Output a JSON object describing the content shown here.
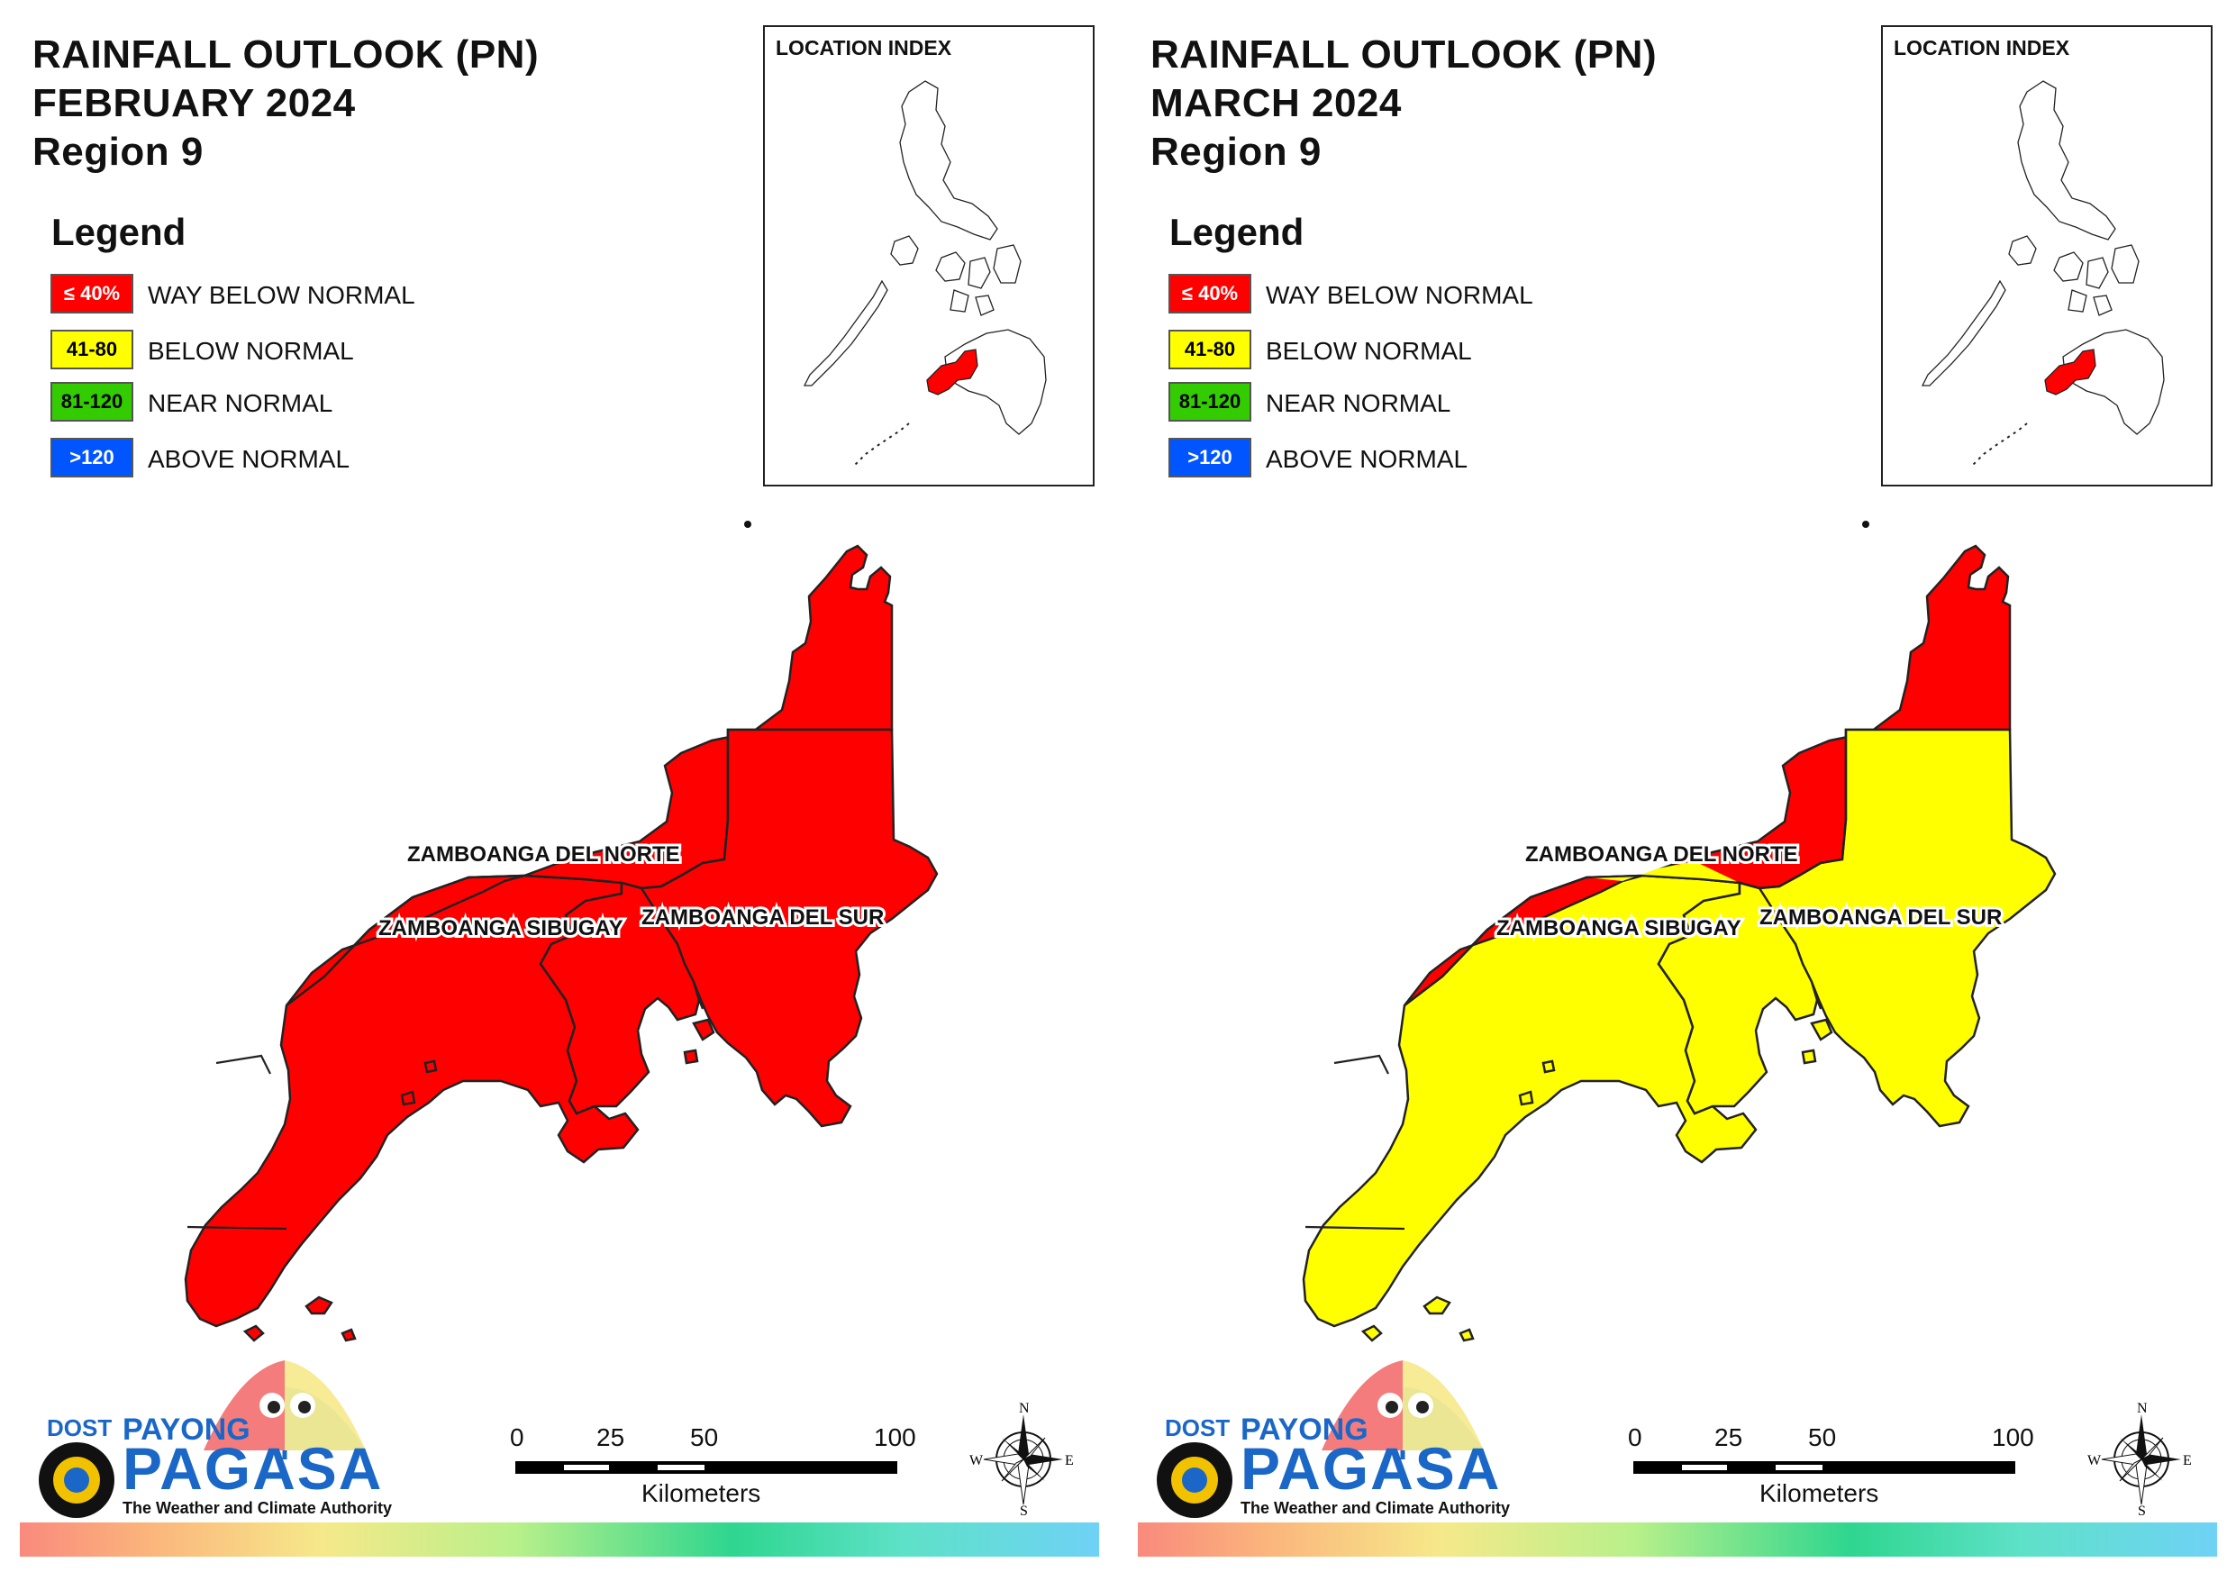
{
  "colors": {
    "way_below": "#ff0000",
    "below": "#ffff00",
    "near": "#33cc00",
    "above": "#0055ff",
    "outline": "#222222"
  },
  "legend": {
    "title": "Legend",
    "items": [
      {
        "key": "way_below",
        "range": "≤ 40%",
        "label": "WAY BELOW NORMAL",
        "swatch_text_color": "#ffffff"
      },
      {
        "key": "below",
        "range": "41-80",
        "label": "BELOW NORMAL",
        "swatch_text_color": "#000000"
      },
      {
        "key": "near",
        "range": "81-120",
        "label": "NEAR NORMAL",
        "swatch_text_color": "#000000"
      },
      {
        "key": "above",
        "range": ">120",
        "label": "ABOVE NORMAL",
        "swatch_text_color": "#ffffff"
      }
    ]
  },
  "location_index_label": "LOCATION INDEX",
  "scalebar": {
    "ticks": [
      "0",
      "25",
      "50",
      "100"
    ],
    "unit": "Kilometers"
  },
  "compass": {
    "n": "N",
    "s": "S",
    "e": "E",
    "w": "W"
  },
  "logo": {
    "dost": "DOST",
    "payong": "PAYONG",
    "pagasa": "PAGASA",
    "tagline": "The Weather and Climate Authority"
  },
  "panels": [
    {
      "title_line1": "RAINFALL OUTLOOK (PN)",
      "title_line2": "FEBRUARY 2024",
      "title_line3": "Region 9",
      "provinces": {
        "zamboanga_del_norte": {
          "label": "ZAMBOANGA DEL NORTE",
          "category": "way_below"
        },
        "zamboanga_sibugay": {
          "label": "ZAMBOANGA SIBUGAY",
          "category": "way_below"
        },
        "zamboanga_del_sur": {
          "label": "ZAMBOANGA DEL SUR",
          "category": "way_below"
        }
      }
    },
    {
      "title_line1": "RAINFALL OUTLOOK (PN)",
      "title_line2": "MARCH 2024",
      "title_line3": "Region 9",
      "provinces": {
        "zamboanga_del_norte": {
          "label": "ZAMBOANGA DEL NORTE",
          "category": "way_below",
          "partial_category": "below"
        },
        "zamboanga_sibugay": {
          "label": "ZAMBOANGA SIBUGAY",
          "category": "below"
        },
        "zamboanga_del_sur": {
          "label": "ZAMBOANGA DEL SUR",
          "category": "below"
        }
      }
    }
  ]
}
